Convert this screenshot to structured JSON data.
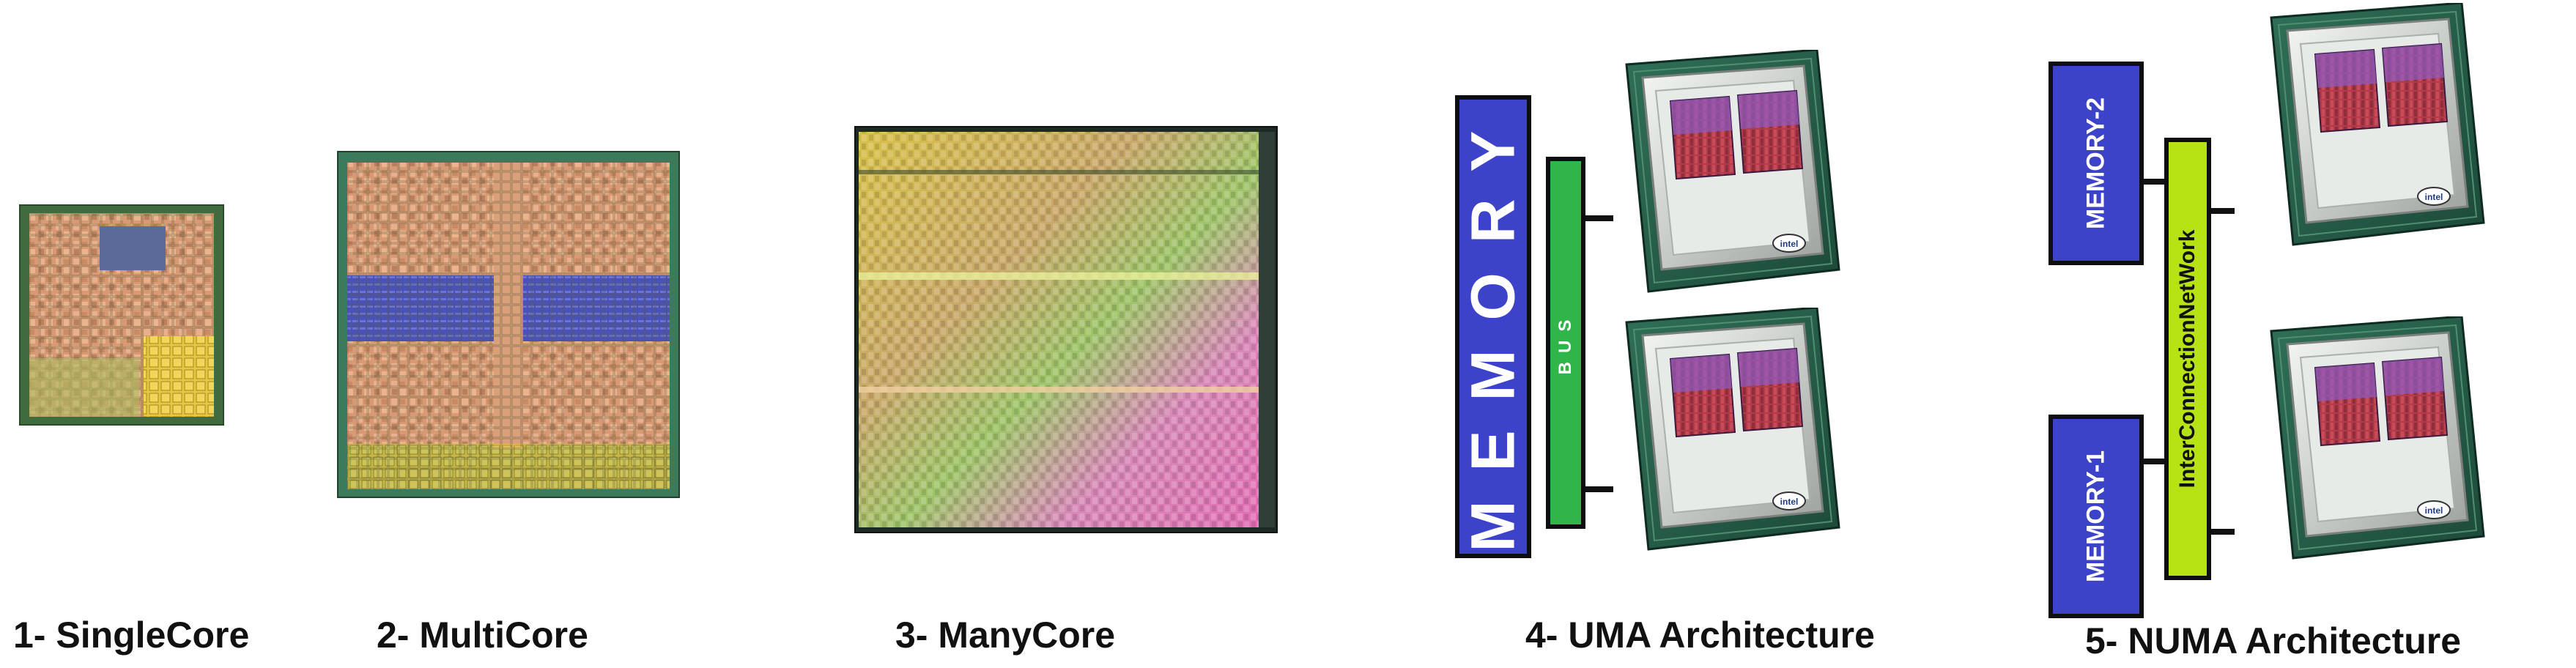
{
  "captions": {
    "single": "1- SingleCore",
    "multi": "2- MultiCore",
    "many": "3- ManyCore",
    "uma": "4- UMA Architecture",
    "numa": "5- NUMA Architecture"
  },
  "uma": {
    "memory_label": "MEMORY",
    "bus_label": "BUS"
  },
  "numa": {
    "memory_top_label": "MEMORY-2",
    "memory_bottom_label": "MEMORY-1",
    "interconnect_label": "InterConnectionNetWork"
  },
  "colors": {
    "memory_blue": "#3c43c9",
    "bus_green": "#2fb54a",
    "interconnect_lime": "#b7e314"
  }
}
